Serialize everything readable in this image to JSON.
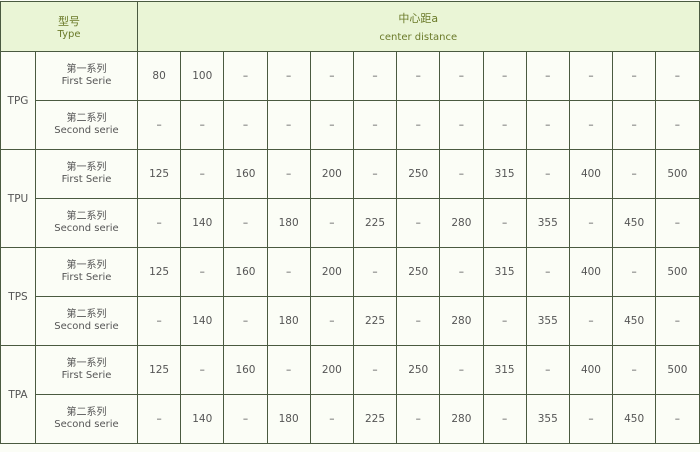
{
  "header": {
    "type_zh": "型号",
    "type_en": "Type",
    "distance_zh": "中心距a",
    "distance_en": "center distance"
  },
  "series_labels": {
    "first_zh": "第一系列",
    "first_en": "First Serie",
    "second_zh": "第二系列",
    "second_en": "Second serie"
  },
  "groups": [
    {
      "type": "TPG",
      "color": "#8a8a3a",
      "first": [
        "80",
        "100",
        "–",
        "–",
        "–",
        "–",
        "–",
        "–",
        "–",
        "–",
        "–",
        "–",
        "–"
      ],
      "second": [
        "–",
        "–",
        "–",
        "–",
        "–",
        "–",
        "–",
        "–",
        "–",
        "–",
        "–",
        "–",
        "–"
      ]
    },
    {
      "type": "TPU",
      "color": "#555e66",
      "first": [
        "125",
        "–",
        "160",
        "–",
        "200",
        "–",
        "250",
        "–",
        "315",
        "–",
        "400",
        "–",
        "500"
      ],
      "second": [
        "–",
        "140",
        "–",
        "180",
        "–",
        "225",
        "–",
        "280",
        "–",
        "355",
        "–",
        "450",
        "–"
      ]
    },
    {
      "type": "TPS",
      "color": "#3a8a8e",
      "first": [
        "125",
        "–",
        "160",
        "–",
        "200",
        "–",
        "250",
        "–",
        "315",
        "–",
        "400",
        "–",
        "500"
      ],
      "second": [
        "–",
        "140",
        "–",
        "180",
        "–",
        "225",
        "–",
        "280",
        "–",
        "355",
        "–",
        "450",
        "–"
      ]
    },
    {
      "type": "TPA",
      "color": "#4a4f8e",
      "first": [
        "125",
        "–",
        "160",
        "–",
        "200",
        "–",
        "250",
        "–",
        "315",
        "–",
        "400",
        "–",
        "500"
      ],
      "second": [
        "–",
        "140",
        "–",
        "180",
        "–",
        "225",
        "–",
        "280",
        "–",
        "355",
        "–",
        "450",
        "–"
      ]
    }
  ]
}
